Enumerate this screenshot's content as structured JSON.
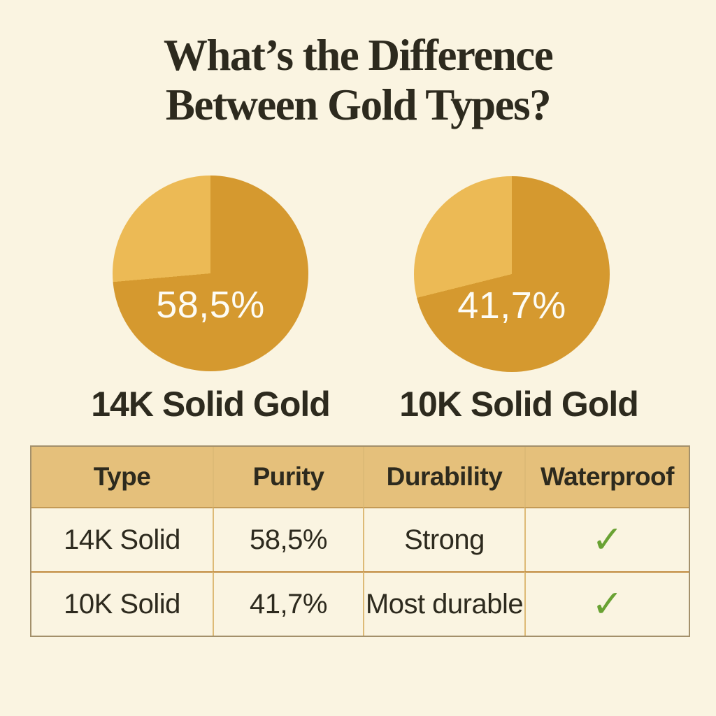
{
  "colors": {
    "background": "#FAF4E1",
    "text_dark": "#2D2A1E",
    "pie_main_gold": "#D5992F",
    "pie_light_gold": "#ECBA55",
    "pie_label_white": "#FDFCF5",
    "table_header_fill": "#E5C07B",
    "table_border_outer": "#A3906B",
    "table_border_vertical": "#DDBA76",
    "header_bottom_border": "#C49A55",
    "table_row_divider": "#C18A3E",
    "check_green": "#69A233"
  },
  "title": {
    "line1": "What’s the Difference",
    "line2": "Between Gold Types?"
  },
  "chart_data": [
    {
      "type": "pie",
      "title": "14K Solid Gold",
      "center_label": "58,5%",
      "legend_position": "none",
      "slices": [
        {
          "name": "gold-dark",
          "percent": 73.6,
          "color": "#D5992F"
        },
        {
          "name": "gold-light",
          "percent": 26.4,
          "color": "#ECBA55"
        }
      ]
    },
    {
      "type": "pie",
      "title": "10K Solid Gold",
      "center_label": "41,7%",
      "legend_position": "none",
      "slices": [
        {
          "name": "gold-dark",
          "percent": 71.1,
          "color": "#D5992F"
        },
        {
          "name": "gold-light",
          "percent": 28.9,
          "color": "#ECBA55"
        }
      ]
    }
  ],
  "table": {
    "headers": [
      "Type",
      "Purity",
      "Durability",
      "Waterproof"
    ],
    "rows": [
      {
        "cells": [
          "14K Solid",
          "58,5%",
          "Strong",
          "✓"
        ]
      },
      {
        "cells": [
          "10K Solid",
          "41,7%",
          "Most durable",
          "✓"
        ]
      }
    ]
  }
}
